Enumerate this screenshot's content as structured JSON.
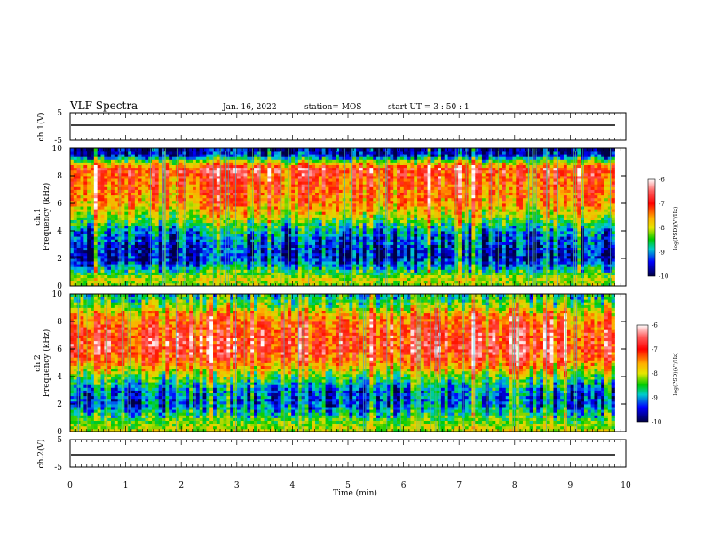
{
  "header": {
    "title": "VLF Spectra",
    "date": "Jan. 16, 2022",
    "station": "station= MOS",
    "start": "start  UT =  3 : 50 : 1"
  },
  "panels": {
    "ch1_wave": {
      "ylabel": "ch.1(V)",
      "ticks": [
        "5",
        "-5"
      ]
    },
    "ch1_spec": {
      "ylabel_top": "ch.1",
      "ylabel": "Frequency (kHz)",
      "ticks": [
        "0",
        "2",
        "4",
        "6",
        "8",
        "10"
      ]
    },
    "ch2_spec": {
      "ylabel_top": "ch.2",
      "ylabel": "Frequency (kHz)",
      "ticks": [
        "0",
        "2",
        "4",
        "6",
        "8",
        "10"
      ]
    },
    "ch2_wave": {
      "ylabel": "ch.2(V)",
      "ticks": [
        "5",
        "-5"
      ]
    }
  },
  "x_axis": {
    "label": "Time (min)",
    "ticks": [
      "0",
      "1",
      "2",
      "3",
      "4",
      "5",
      "6",
      "7",
      "8",
      "9",
      "10"
    ]
  },
  "colorbar": {
    "label": "log(PSD)(V²/Hz)",
    "ticks": [
      "-6",
      "-7",
      "-8",
      "-9",
      "-10"
    ],
    "colors": [
      "#ffffff",
      "#ff0000",
      "#ffb000",
      "#00cc00",
      "#0000ff",
      "#000044"
    ]
  },
  "chart_data": [
    {
      "type": "line",
      "title": "ch.1 waveform",
      "ylabel": "ch.1(V)",
      "xlim": [
        0,
        10
      ],
      "ylim": [
        -5,
        5
      ],
      "series": [
        {
          "x": [
            0,
            9.8
          ],
          "values": [
            0.6,
            0.6
          ]
        }
      ]
    },
    {
      "type": "heatmap",
      "title": "ch.1 spectrogram",
      "xlabel": "Time (min)",
      "ylabel": "Frequency (kHz)",
      "xlim": [
        0,
        10
      ],
      "ylim": [
        0,
        10
      ],
      "zlabel": "log(PSD)(V²/Hz)",
      "zlim": [
        -10,
        -6
      ],
      "data_end_min": 9.8,
      "profile_freq_khz": [
        0,
        0.5,
        1,
        2,
        3,
        4,
        5,
        6,
        7,
        8,
        8.5,
        9,
        9.5,
        10
      ],
      "profile_logpsd": [
        -8.3,
        -8.0,
        -8.6,
        -9.7,
        -9.5,
        -9.1,
        -8.2,
        -7.5,
        -7.3,
        -7.1,
        -6.9,
        -8.0,
        -9.6,
        -9.9
      ]
    },
    {
      "type": "heatmap",
      "title": "ch.2 spectrogram",
      "xlabel": "Time (min)",
      "ylabel": "Frequency (kHz)",
      "xlim": [
        0,
        10
      ],
      "ylim": [
        0,
        10
      ],
      "zlabel": "log(PSD)(V²/Hz)",
      "zlim": [
        -10,
        -6
      ],
      "data_end_min": 9.8,
      "profile_freq_khz": [
        0,
        0.5,
        1,
        2,
        3,
        4,
        5,
        6,
        7,
        8,
        8.5,
        9,
        9.5,
        10
      ],
      "profile_logpsd": [
        -8.0,
        -8.2,
        -8.5,
        -9.3,
        -9.2,
        -8.4,
        -7.3,
        -6.8,
        -6.9,
        -7.2,
        -7.5,
        -8.1,
        -8.5,
        -8.8
      ]
    },
    {
      "type": "line",
      "title": "ch.2 waveform",
      "ylabel": "ch.2(V)",
      "xlim": [
        0,
        10
      ],
      "ylim": [
        -5,
        5
      ],
      "series": [
        {
          "x": [
            0,
            9.8
          ],
          "values": [
            0.0,
            0.0
          ]
        }
      ]
    }
  ]
}
